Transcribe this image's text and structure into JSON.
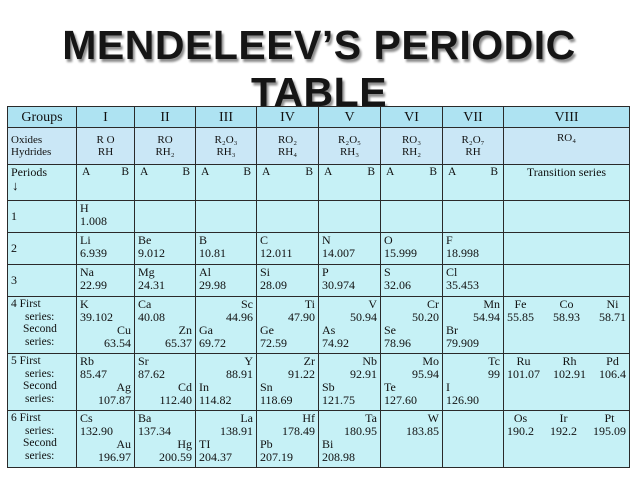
{
  "title": "MENDELEEV’S PERIODIC TABLE",
  "header": {
    "groups_label": "Groups",
    "groups": [
      "I",
      "II",
      "III",
      "IV",
      "V",
      "VI",
      "VII",
      "VIII"
    ]
  },
  "oxides": {
    "label_oxides": "Oxides",
    "label_hydrides": "Hydrides",
    "cells": [
      {
        "oxide": "R O",
        "hydride": "RH"
      },
      {
        "oxide": "RO",
        "hydride": "RH₂"
      },
      {
        "oxide": "R₂O₃",
        "hydride": "RH₃"
      },
      {
        "oxide": "RO₂",
        "hydride": "RH₄"
      },
      {
        "oxide": "R₂O₅",
        "hydride": "RH₃"
      },
      {
        "oxide": "RO₃",
        "hydride": "RH₂"
      },
      {
        "oxide": "R₂O₇",
        "hydride": "RH"
      },
      {
        "oxide": "RO₄",
        "hydride": ""
      }
    ]
  },
  "periods_row": {
    "label": "Periods",
    "arrow": "↓",
    "a": "A",
    "b": "B",
    "transition": "Transition series"
  },
  "rows": {
    "r1": {
      "period": "1",
      "H": {
        "sym": "H",
        "mass": "1.008"
      }
    },
    "r2": {
      "period": "2",
      "c1": {
        "sym": "Li",
        "mass": "6.939"
      },
      "c2": {
        "sym": "Be",
        "mass": "9.012"
      },
      "c3": {
        "sym": "B",
        "mass": "10.81"
      },
      "c4": {
        "sym": "C",
        "mass": "12.011"
      },
      "c5": {
        "sym": "N",
        "mass": "14.007"
      },
      "c6": {
        "sym": "O",
        "mass": "15.999"
      },
      "c7": {
        "sym": "F",
        "mass": "18.998"
      }
    },
    "r3": {
      "period": "3",
      "c1": {
        "sym": "Na",
        "mass": "22.99"
      },
      "c2": {
        "sym": "Mg",
        "mass": "24.31"
      },
      "c3": {
        "sym": "Al",
        "mass": "29.98"
      },
      "c4": {
        "sym": "Si",
        "mass": "28.09"
      },
      "c5": {
        "sym": "P",
        "mass": "30.974"
      },
      "c6": {
        "sym": "S",
        "mass": "32.06"
      },
      "c7": {
        "sym": "Cl",
        "mass": "35.453"
      }
    },
    "r4": {
      "period": "4",
      "first": "First",
      "series": "series:",
      "second": "Second",
      "series2": "series:",
      "c1": {
        "a": "K",
        "am": "39.102",
        "b": "Cu",
        "bm": "63.54"
      },
      "c2": {
        "a": "Ca",
        "am": "40.08",
        "b": "Zn",
        "bm": "65.37"
      },
      "c3": {
        "b": "Sc",
        "bm": "44.96",
        "a": "Ga",
        "am": "69.72"
      },
      "c4": {
        "b": "Ti",
        "bm": "47.90",
        "a": "Ge",
        "am": "72.59"
      },
      "c5": {
        "b": "V",
        "bm": "50.94",
        "a": "As",
        "am": "74.92"
      },
      "c6": {
        "b": "Cr",
        "bm": "50.20",
        "a": "Se",
        "am": "78.96"
      },
      "c7": {
        "b": "Mn",
        "bm": "54.94",
        "a": "Br",
        "am": "79.909"
      },
      "c8": {
        "s1": "Fe",
        "s2": "Co",
        "s3": "Ni",
        "m1": "55.85",
        "m2": "58.93",
        "m3": "58.71"
      }
    },
    "r5": {
      "period": "5",
      "first": "First",
      "series": "series:",
      "second": "Second",
      "series2": "series:",
      "c1": {
        "a": "Rb",
        "am": "85.47",
        "b": "Ag",
        "bm": "107.87"
      },
      "c2": {
        "a": "Sr",
        "am": "87.62",
        "b": "Cd",
        "bm": "112.40"
      },
      "c3": {
        "b": "Y",
        "bm": "88.91",
        "a": "In",
        "am": "114.82"
      },
      "c4": {
        "b": "Zr",
        "bm": "91.22",
        "a": "Sn",
        "am": "118.69"
      },
      "c5": {
        "b": "Nb",
        "bm": "92.91",
        "a": "Sb",
        "am": "121.75"
      },
      "c6": {
        "b": "Mo",
        "bm": "95.94",
        "a": "Te",
        "am": "127.60"
      },
      "c7": {
        "b": "Tc",
        "bm": "99",
        "a": "I",
        "am": "126.90"
      },
      "c8": {
        "s1": "Ru",
        "s2": "Rh",
        "s3": "Pd",
        "m1": "101.07",
        "m2": "102.91",
        "m3": "106.4"
      }
    },
    "r6": {
      "period": "6",
      "first": "First",
      "series": "series:",
      "second": "Second",
      "series2": "series:",
      "c1": {
        "a": "Cs",
        "am": "132.90",
        "b": "Au",
        "bm": "196.97"
      },
      "c2": {
        "a": "Ba",
        "am": "137.34",
        "b": "Hg",
        "bm": "200.59"
      },
      "c3": {
        "b": "La",
        "bm": "138.91",
        "a": "TI",
        "am": "204.37"
      },
      "c4": {
        "b": "Hf",
        "bm": "178.49",
        "a": "Pb",
        "am": "207.19"
      },
      "c5": {
        "b": "Ta",
        "bm": "180.95",
        "a": "Bi",
        "am": "208.98"
      },
      "c6": {
        "b": "W",
        "bm": "183.85"
      },
      "c8": {
        "s1": "Os",
        "s2": "Ir",
        "s3": "Pt",
        "m1": "190.2",
        "m2": "192.2",
        "m3": "195.09"
      }
    }
  }
}
